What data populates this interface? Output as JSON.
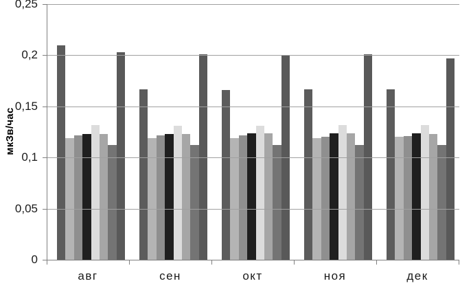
{
  "chart_data": {
    "type": "bar",
    "title": "",
    "xlabel": "",
    "ylabel": "мкЗв/час",
    "categories": [
      "авг",
      "сен",
      "окт",
      "ноя",
      "дек"
    ],
    "series": [
      {
        "name": "series-1",
        "color": "#5c5c5c",
        "values": [
          0.21,
          0.167,
          0.166,
          0.167,
          0.167
        ]
      },
      {
        "name": "series-2",
        "color": "#b4b4b4",
        "values": [
          0.119,
          0.119,
          0.119,
          0.119,
          0.12
        ]
      },
      {
        "name": "series-3",
        "color": "#8f8f8f",
        "values": [
          0.122,
          0.122,
          0.122,
          0.12,
          0.121
        ]
      },
      {
        "name": "series-4",
        "color": "#1f1f1f",
        "values": [
          0.123,
          0.123,
          0.124,
          0.124,
          0.124
        ]
      },
      {
        "name": "series-5",
        "color": "#dcdcdc",
        "values": [
          0.132,
          0.131,
          0.131,
          0.132,
          0.132
        ]
      },
      {
        "name": "series-6",
        "color": "#a6a6a6",
        "values": [
          0.123,
          0.123,
          0.124,
          0.124,
          0.123
        ]
      },
      {
        "name": "series-7",
        "color": "#747474",
        "values": [
          0.112,
          0.112,
          0.112,
          0.112,
          0.112
        ]
      },
      {
        "name": "series-8",
        "color": "#595959",
        "values": [
          0.203,
          0.201,
          0.2,
          0.201,
          0.197
        ]
      }
    ],
    "ylim": [
      0,
      0.25
    ],
    "ytick_step": 0.05,
    "ytick_labels": [
      "0",
      "0,05",
      "0,1",
      "0,15",
      "0,2",
      "0,25"
    ],
    "grid": true,
    "legend": "none",
    "decimal_separator": ","
  },
  "colors": {
    "gridline": "#a0a0a0",
    "axis": "#7f7f7f",
    "text": "#1a1a1a",
    "background": "#ffffff"
  }
}
